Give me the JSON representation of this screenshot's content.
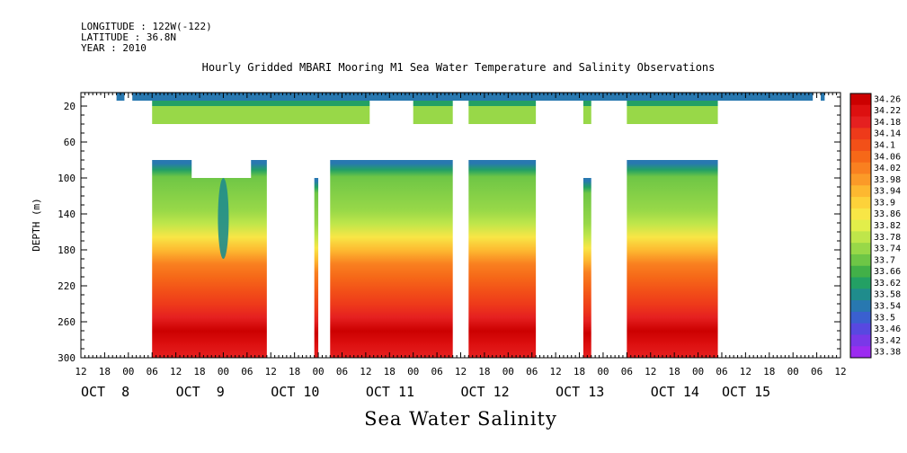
{
  "header": {
    "longitude": "LONGITUDE : 122W(-122)",
    "latitude": "LATITUDE : 36.8N",
    "year": "YEAR : 2010"
  },
  "title": "Hourly Gridded MBARI Mooring M1 Sea Water Temperature and Salinity Observations",
  "variable_title": "Sea Water Salinity",
  "chart_data": {
    "type": "heatmap",
    "title": "Hourly Gridded MBARI Mooring M1 Sea Water Temperature and Salinity Observations",
    "ylabel": "DEPTH (m)",
    "xlabel": "",
    "x_range_hours": [
      -12,
      180
    ],
    "y_range": [
      5,
      300
    ],
    "y_inverted": true,
    "y_ticks": [
      20,
      60,
      100,
      140,
      180,
      220,
      260,
      300
    ],
    "hour_ticks": [
      "12",
      "18",
      "00",
      "06",
      "12",
      "18",
      "00",
      "06",
      "12",
      "18",
      "00",
      "06",
      "12",
      "18",
      "00",
      "06",
      "12",
      "18",
      "00",
      "06",
      "12",
      "18",
      "00",
      "06",
      "12",
      "18",
      "00",
      "06",
      "12",
      "18",
      "00",
      "06",
      "12"
    ],
    "date_labels": [
      {
        "label": "OCT  8",
        "hour": -12
      },
      {
        "label": "OCT  9",
        "hour": 12
      },
      {
        "label": "OCT 10",
        "hour": 36
      },
      {
        "label": "OCT 11",
        "hour": 60
      },
      {
        "label": "OCT 12",
        "hour": 84
      },
      {
        "label": "OCT 13",
        "hour": 108
      },
      {
        "label": "OCT 14",
        "hour": 132
      },
      {
        "label": "OCT 15",
        "hour": 150
      }
    ],
    "colorbar_levels": [
      "34.26",
      "34.22",
      "34.18",
      "34.14",
      "34.1",
      "34.06",
      "34.02",
      "33.98",
      "33.94",
      "33.9",
      "33.86",
      "33.82",
      "33.78",
      "33.74",
      "33.7",
      "33.66",
      "33.62",
      "33.58",
      "33.54",
      "33.5",
      "33.46",
      "33.42",
      "33.38"
    ],
    "colorbar_colors": [
      "#cc0000",
      "#dd1010",
      "#e52020",
      "#ee3a1a",
      "#f25018",
      "#f66818",
      "#f98020",
      "#fb9a28",
      "#fdb830",
      "#fdd23a",
      "#f8e646",
      "#e2ee4a",
      "#bfe64a",
      "#98d848",
      "#6ec646",
      "#42b048",
      "#23a064",
      "#1f8c8c",
      "#2878b0",
      "#3a60d0",
      "#5848e0",
      "#7a38e8",
      "#9c2cf0"
    ],
    "depth_profile": [
      {
        "depth": 10,
        "value": 33.52
      },
      {
        "depth": 20,
        "value": 33.58
      },
      {
        "depth": 30,
        "value": 33.68
      },
      {
        "depth": 80,
        "value": 33.7
      },
      {
        "depth": 100,
        "value": 33.76
      },
      {
        "depth": 120,
        "value": 33.84
      },
      {
        "depth": 140,
        "value": 33.92
      },
      {
        "depth": 160,
        "value": 33.98
      },
      {
        "depth": 180,
        "value": 34.02
      },
      {
        "depth": 200,
        "value": 34.06
      },
      {
        "depth": 220,
        "value": 34.1
      },
      {
        "depth": 240,
        "value": 34.16
      },
      {
        "depth": 260,
        "value": 34.22
      },
      {
        "depth": 280,
        "value": 34.18
      },
      {
        "depth": 300,
        "value": 34.14
      }
    ],
    "data_blocks_deep": [
      [
        6,
        35
      ],
      [
        47,
        48
      ],
      [
        51,
        82
      ],
      [
        86,
        103
      ],
      [
        115,
        117
      ],
      [
        126,
        149
      ]
    ],
    "data_blocks_shallow": [
      [
        6,
        61
      ],
      [
        72,
        82
      ],
      [
        86,
        103
      ],
      [
        115,
        117
      ],
      [
        126,
        149
      ]
    ],
    "data_blocks_surface": [
      [
        -3,
        -1
      ],
      [
        1,
        173
      ],
      [
        175,
        176
      ]
    ],
    "anomaly": {
      "hour": 24,
      "depth_top": 100,
      "depth_bottom": 190,
      "value": 33.56
    }
  }
}
